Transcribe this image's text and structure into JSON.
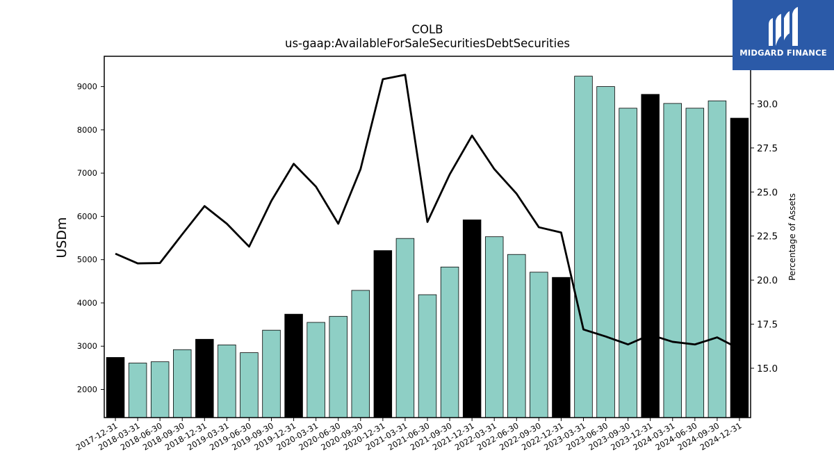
{
  "chart_data": {
    "type": "bar+line",
    "title": "COLB",
    "subtitle": "us-gaap:AvailableForSaleSecuritiesDebtSecurities",
    "ylabel": "USDm",
    "y2label": "Percentage of Assets",
    "ylim": [
      1350,
      9700
    ],
    "y2lim": [
      12.2,
      32.7
    ],
    "yticks": [
      2000,
      3000,
      4000,
      5000,
      6000,
      7000,
      8000,
      9000
    ],
    "y2ticks": [
      "15.0",
      "17.5",
      "20.0",
      "22.5",
      "25.0",
      "27.5",
      "30.0"
    ],
    "bar_color_default": "#8ecfc5",
    "bar_color_year_end": "#000000",
    "line_color": "#000000",
    "categories": [
      "2017-12-31",
      "2018-03-31",
      "2018-06-30",
      "2018-09-30",
      "2018-12-31",
      "2019-03-31",
      "2019-06-30",
      "2019-09-30",
      "2019-12-31",
      "2020-03-31",
      "2020-06-30",
      "2020-09-30",
      "2020-12-31",
      "2021-03-31",
      "2021-06-30",
      "2021-09-30",
      "2021-12-31",
      "2022-03-31",
      "2022-06-30",
      "2022-09-30",
      "2022-12-31",
      "2023-03-31",
      "2023-06-30",
      "2023-09-30",
      "2023-12-31",
      "2024-03-31",
      "2024-06-30",
      "2024-09-30",
      "2024-12-31"
    ],
    "values": [
      2740,
      2610,
      2640,
      2920,
      3160,
      3030,
      2850,
      3370,
      3740,
      3550,
      3690,
      4290,
      5210,
      5490,
      4190,
      4830,
      5920,
      5530,
      5120,
      4710,
      4590,
      9240,
      9000,
      8500,
      8820,
      8610,
      8500,
      8670,
      8270
    ],
    "pct_of_assets": [
      21.5,
      20.95,
      20.97,
      22.6,
      24.2,
      23.2,
      21.9,
      24.5,
      26.6,
      25.3,
      23.2,
      26.3,
      31.4,
      31.65,
      23.3,
      26.0,
      28.2,
      26.3,
      24.9,
      23.0,
      22.7,
      17.2,
      16.8,
      16.35,
      16.9,
      16.5,
      16.35,
      16.75,
      16.1
    ]
  },
  "logo": {
    "text": "MIDGARD FINANCE"
  }
}
